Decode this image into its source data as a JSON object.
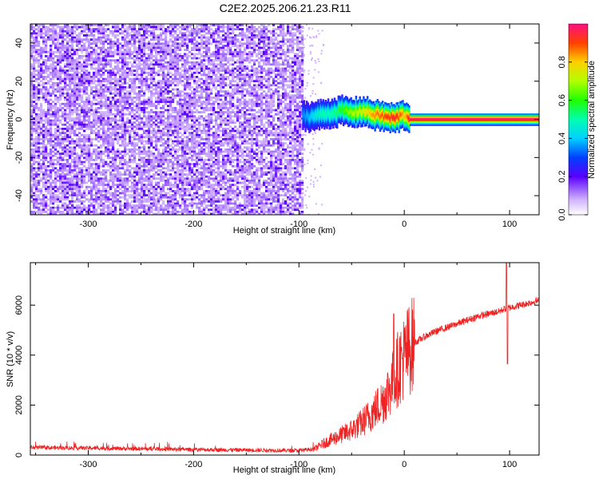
{
  "title": "C2E2.2025.206.21.23.R11",
  "chart_data": [
    {
      "type": "heatmap",
      "xlabel": "Height of straight line (km)",
      "ylabel": "Frequency (Hz)",
      "xlim": [
        -355,
        128
      ],
      "ylim": [
        -50,
        50
      ],
      "xticks": [
        -300,
        -200,
        -100,
        0,
        100
      ],
      "xtick_labels": [
        "-300",
        "-200",
        "-100",
        "0",
        "100"
      ],
      "yticks": [
        -40,
        -20,
        0,
        20,
        40
      ],
      "ytick_labels": [
        "-40",
        "-20",
        "0",
        "20",
        "40"
      ],
      "colorbar": {
        "label": "Normalized spectral amplitude",
        "range": [
          0,
          1
        ],
        "ticks": [
          0.0,
          0.2,
          0.4,
          0.6,
          0.8
        ],
        "tick_labels": [
          "0.0",
          "0.2",
          "0.4",
          "0.6",
          "0.8"
        ]
      },
      "noise_region": {
        "x_range": [
          -355,
          -97
        ],
        "frequency_range": [
          -50,
          50
        ],
        "amplitude_range": [
          0.0,
          0.2
        ]
      },
      "signal_track": {
        "x": [
          -97,
          -90,
          -80,
          -70,
          -60,
          -50,
          -40,
          -30,
          -20,
          -10,
          -5,
          0,
          5,
          20,
          60,
          95,
          128
        ],
        "frequency": [
          3,
          2,
          3,
          4,
          5,
          4,
          5,
          3,
          2,
          1,
          2,
          3,
          0.5,
          0.5,
          0.5,
          0.5,
          0.5
        ],
        "amplitude": [
          0.35,
          0.4,
          0.5,
          0.5,
          0.6,
          0.7,
          0.75,
          0.85,
          0.9,
          0.95,
          0.9,
          0.8,
          1.0,
          1.0,
          1.0,
          1.0,
          1.0
        ]
      },
      "grid": false
    },
    {
      "type": "line",
      "xlabel": "Height of straight line (km)",
      "ylabel": "SNR (10 * v/v)",
      "xlim": [
        -355,
        128
      ],
      "ylim": [
        0,
        7700
      ],
      "xticks": [
        -300,
        -200,
        -100,
        0,
        100
      ],
      "xtick_labels": [
        "-300",
        "-200",
        "-100",
        "0",
        "100"
      ],
      "yticks": [
        0,
        2000,
        4000,
        6000
      ],
      "ytick_labels": [
        "0",
        "2000",
        "4000",
        "6000"
      ],
      "color": "#ee2222",
      "series": [
        {
          "x": [
            -355,
            -300,
            -250,
            -200,
            -150,
            -100,
            -85,
            -75,
            -60,
            -50,
            -40,
            -30,
            -20,
            -15,
            -10,
            -5,
            0,
            5,
            10,
            20,
            30,
            40,
            50,
            60,
            70,
            80,
            90,
            95,
            100,
            110,
            120,
            128
          ],
          "values": [
            300,
            280,
            250,
            220,
            200,
            180,
            250,
            500,
            800,
            1000,
            1300,
            1700,
            2200,
            2600,
            3000,
            3600,
            3900,
            4300,
            4500,
            4750,
            4950,
            5100,
            5250,
            5400,
            5550,
            5650,
            5750,
            5850,
            5900,
            6000,
            6100,
            6200
          ]
        }
      ],
      "spikes": [
        {
          "x": -10,
          "y": 5650
        },
        {
          "x": 97,
          "y": 7700
        },
        {
          "x": 98,
          "y": 3650
        }
      ],
      "grid": false
    }
  ]
}
